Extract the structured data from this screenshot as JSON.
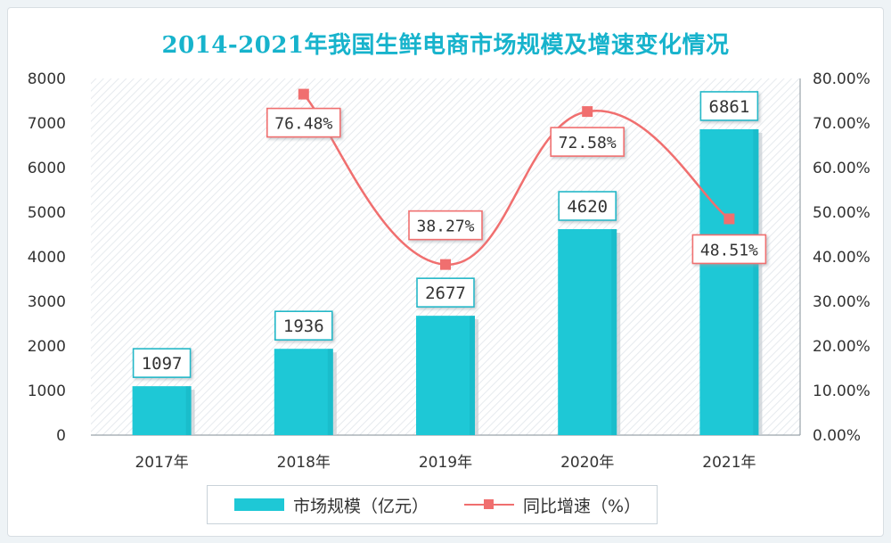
{
  "chart_data": {
    "type": "bar",
    "title": "2014-2021年我国生鲜电商市场规模及增速变化情况",
    "categories": [
      "2017年",
      "2018年",
      "2019年",
      "2020年",
      "2021年"
    ],
    "series": [
      {
        "name": "市场规模（亿元）",
        "type": "bar",
        "axis": "left",
        "values": [
          1097,
          1936,
          2677,
          4620,
          6861
        ],
        "labels": [
          "1097",
          "1936",
          "2677",
          "4620",
          "6861"
        ]
      },
      {
        "name": "同比增速（%）",
        "type": "line",
        "axis": "right",
        "values": [
          null,
          76.48,
          38.27,
          72.58,
          48.51
        ],
        "labels": [
          "",
          "76.48%",
          "38.27%",
          "72.58%",
          "48.51%"
        ]
      }
    ],
    "ylim": [
      0,
      8000
    ],
    "y_ticks": [
      "0",
      "1000",
      "2000",
      "3000",
      "4000",
      "5000",
      "6000",
      "7000",
      "8000"
    ],
    "y2lim": [
      0,
      80
    ],
    "y2_ticks": [
      "0.00%",
      "10.00%",
      "20.00%",
      "30.00%",
      "40.00%",
      "50.00%",
      "60.00%",
      "70.00%",
      "80.00%"
    ],
    "legend_position": "bottom",
    "colors": {
      "bar": "#1ec8d6",
      "bar_dark": "#13a9b8",
      "line": "#f06f6f",
      "title": "#17b3cc",
      "label_border_bar": "#23b8c8",
      "label_border_line": "#f06f6f"
    }
  },
  "legend": {
    "bar_label": "市场规模（亿元）",
    "line_label": "同比增速（%）"
  }
}
